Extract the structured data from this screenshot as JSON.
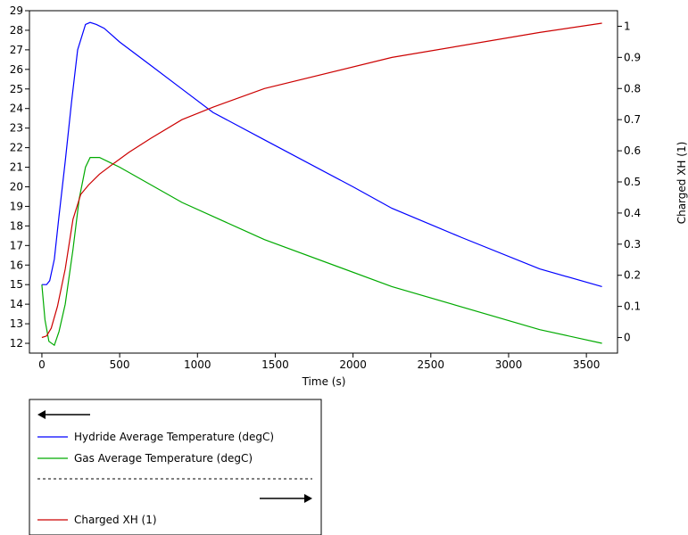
{
  "chart_data": {
    "type": "line",
    "xlabel": "Time (s)",
    "ylabel_left": "",
    "ylabel_right": "Charged XH (1)",
    "xlim": [
      -80,
      3700
    ],
    "ylim_left": [
      11.5,
      29
    ],
    "ylim_right": [
      -0.05,
      1.05
    ],
    "x_ticks": [
      0,
      500,
      1000,
      1500,
      2000,
      2500,
      3000,
      3500
    ],
    "y_left_ticks": [
      12,
      13,
      14,
      15,
      16,
      17,
      18,
      19,
      20,
      21,
      22,
      23,
      24,
      25,
      26,
      27,
      28,
      29
    ],
    "y_right_ticks": [
      0,
      0.1,
      0.2,
      0.3,
      0.4,
      0.5,
      0.6,
      0.7,
      0.8,
      0.9,
      1
    ],
    "y_right_tick_labels": [
      "0",
      "0.1",
      "0.2",
      "0.3",
      "0.4",
      "0.5",
      "0.6",
      "0.7",
      "0.8",
      "0.9",
      "1"
    ],
    "grid": false,
    "series": [
      {
        "name": "Hydride Average Temperature (degC)",
        "axis": "left",
        "color": "#0000ff",
        "x": [
          0,
          30,
          50,
          80,
          110,
          150,
          190,
          230,
          280,
          310,
          350,
          400,
          500,
          700,
          900,
          1100,
          1430,
          2000,
          2250,
          2700,
          3200,
          3600
        ],
        "y": [
          15,
          15,
          15.2,
          16.3,
          18.5,
          21.3,
          24.3,
          27.0,
          28.3,
          28.4,
          28.3,
          28.1,
          27.4,
          26.2,
          25.0,
          23.8,
          22.4,
          20.0,
          18.9,
          17.4,
          15.8,
          14.9
        ]
      },
      {
        "name": "Gas Average Temperature (degC)",
        "axis": "left",
        "color": "#00aa00",
        "x": [
          0,
          20,
          45,
          80,
          110,
          150,
          200,
          240,
          280,
          310,
          370,
          500,
          900,
          1430,
          2250,
          3200,
          3600
        ],
        "y": [
          15,
          13.2,
          12.1,
          11.9,
          12.6,
          14.0,
          16.8,
          19.4,
          21.0,
          21.5,
          21.5,
          21.0,
          19.2,
          17.3,
          14.9,
          12.7,
          12.0
        ]
      },
      {
        "name": "Charged XH (1)",
        "axis": "right",
        "color": "#cc0000",
        "x": [
          0,
          30,
          60,
          100,
          150,
          200,
          250,
          300,
          370,
          450,
          560,
          700,
          900,
          1100,
          1430,
          2250,
          3200,
          3600
        ],
        "y": [
          0,
          0.005,
          0.03,
          0.1,
          0.22,
          0.38,
          0.46,
          0.49,
          0.525,
          0.555,
          0.595,
          0.64,
          0.7,
          0.74,
          0.8,
          0.9,
          0.98,
          1.01
        ]
      }
    ],
    "legend": {
      "placement": "bottom-left",
      "left_arrow": "left-axis",
      "right_arrow": "right-axis"
    }
  }
}
